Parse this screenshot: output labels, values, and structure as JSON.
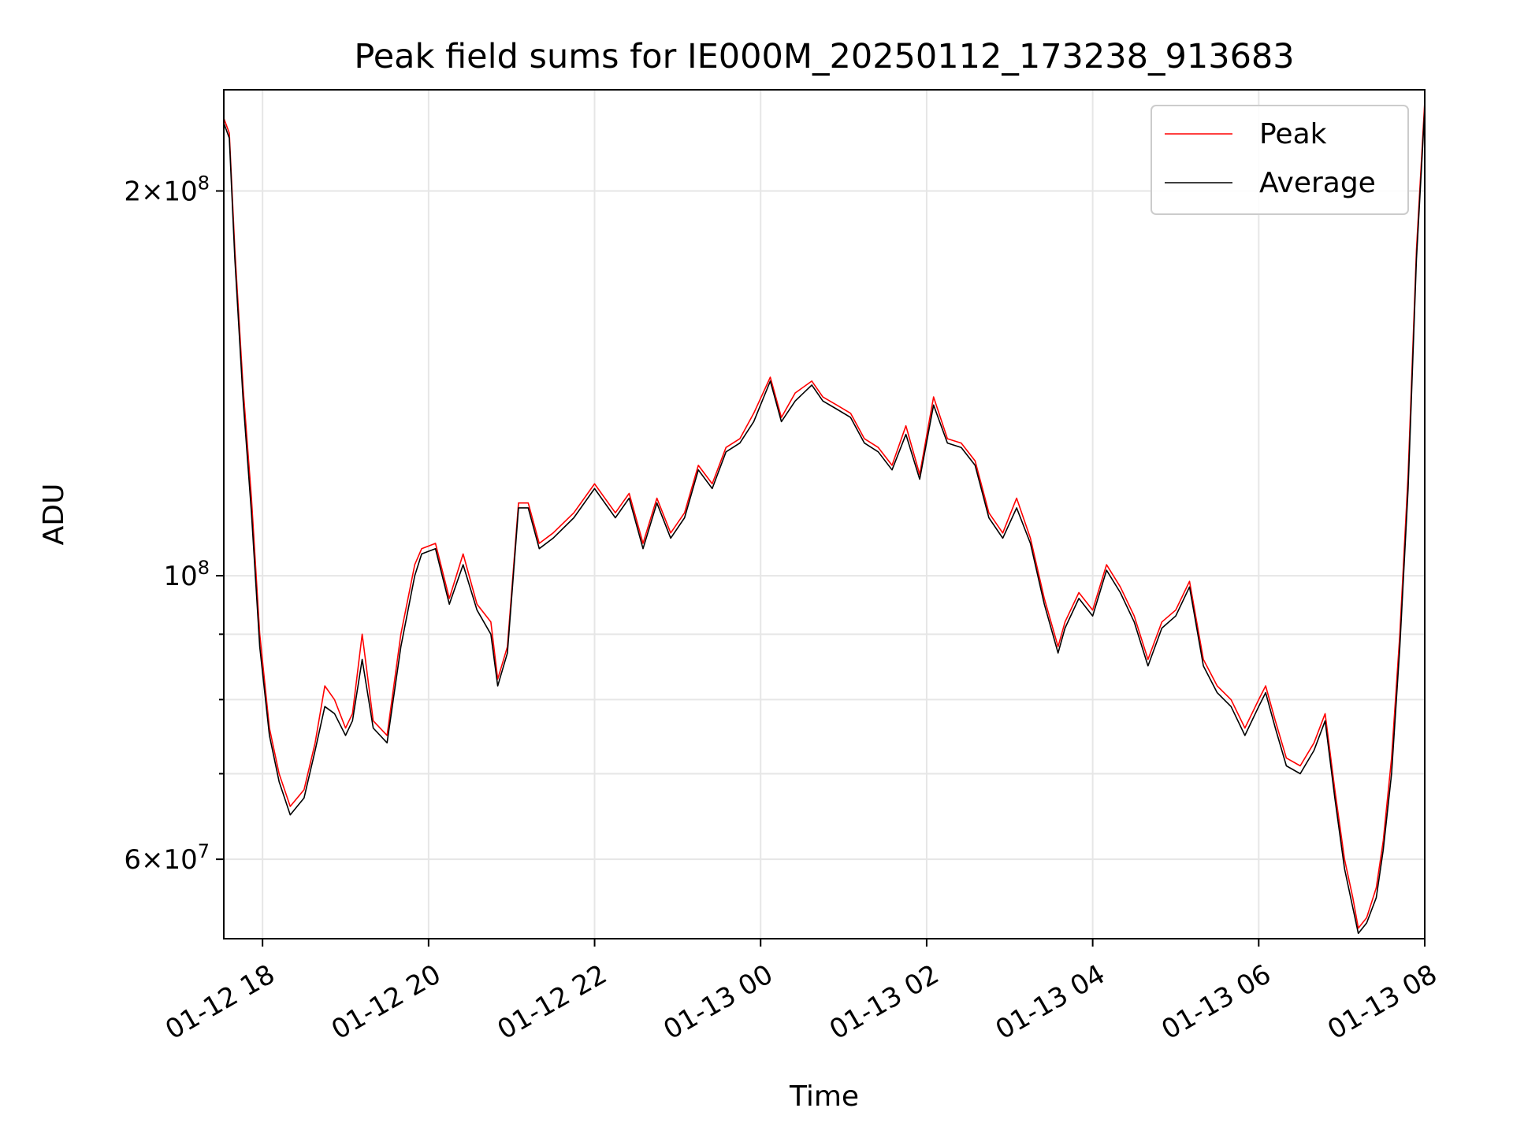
{
  "chart_data": {
    "type": "line",
    "title": "Peak field sums for IE000M_20250112_173238_913683",
    "xlabel": "Time",
    "ylabel": "ADU",
    "yscale": "log",
    "xlim": [
      "2025-01-12 17:32",
      "2025-01-13 08:00"
    ],
    "ylim": [
      52000000,
      240000000
    ],
    "x_ticks": [
      "01-12 18",
      "01-12 20",
      "01-12 22",
      "01-13 00",
      "01-13 02",
      "01-13 04",
      "01-13 06",
      "01-13 08"
    ],
    "y_major_ticks": [
      {
        "value": 60000000,
        "base": "6",
        "exp": "7"
      },
      {
        "value": 100000000,
        "base": "",
        "exp": "8"
      },
      {
        "value": 200000000,
        "base": "2",
        "exp": "8"
      }
    ],
    "y_minor_ticks": [
      70000000,
      80000000,
      90000000
    ],
    "grid": true,
    "legend_position": "top-right",
    "series": [
      {
        "name": "Peak",
        "color": "#ff0000",
        "x": [
          "2025-01-12 17:32",
          "2025-01-12 17:36",
          "2025-01-12 17:40",
          "2025-01-12 17:46",
          "2025-01-12 17:52",
          "2025-01-12 17:58",
          "2025-01-12 18:05",
          "2025-01-12 18:12",
          "2025-01-12 18:20",
          "2025-01-12 18:30",
          "2025-01-12 18:38",
          "2025-01-12 18:45",
          "2025-01-12 18:52",
          "2025-01-12 19:00",
          "2025-01-12 19:05",
          "2025-01-12 19:12",
          "2025-01-12 19:20",
          "2025-01-12 19:30",
          "2025-01-12 19:40",
          "2025-01-12 19:50",
          "2025-01-12 19:55",
          "2025-01-12 20:05",
          "2025-01-12 20:15",
          "2025-01-12 20:25",
          "2025-01-12 20:35",
          "2025-01-12 20:45",
          "2025-01-12 20:50",
          "2025-01-12 20:57",
          "2025-01-12 21:05",
          "2025-01-12 21:12",
          "2025-01-12 21:20",
          "2025-01-12 21:30",
          "2025-01-12 21:45",
          "2025-01-12 22:00",
          "2025-01-12 22:15",
          "2025-01-12 22:25",
          "2025-01-12 22:35",
          "2025-01-12 22:45",
          "2025-01-12 22:55",
          "2025-01-12 23:05",
          "2025-01-12 23:15",
          "2025-01-12 23:25",
          "2025-01-12 23:35",
          "2025-01-12 23:45",
          "2025-01-12 23:55",
          "2025-01-13 00:07",
          "2025-01-13 00:15",
          "2025-01-13 00:25",
          "2025-01-13 00:37",
          "2025-01-13 00:45",
          "2025-01-13 00:55",
          "2025-01-13 01:05",
          "2025-01-13 01:15",
          "2025-01-13 01:25",
          "2025-01-13 01:35",
          "2025-01-13 01:45",
          "2025-01-13 01:55",
          "2025-01-13 02:05",
          "2025-01-13 02:15",
          "2025-01-13 02:25",
          "2025-01-13 02:35",
          "2025-01-13 02:45",
          "2025-01-13 02:55",
          "2025-01-13 03:05",
          "2025-01-13 03:15",
          "2025-01-13 03:25",
          "2025-01-13 03:35",
          "2025-01-13 03:40",
          "2025-01-13 03:50",
          "2025-01-13 04:00",
          "2025-01-13 04:10",
          "2025-01-13 04:20",
          "2025-01-13 04:30",
          "2025-01-13 04:40",
          "2025-01-13 04:50",
          "2025-01-13 05:00",
          "2025-01-13 05:10",
          "2025-01-13 05:20",
          "2025-01-13 05:30",
          "2025-01-13 05:40",
          "2025-01-13 05:50",
          "2025-01-13 06:00",
          "2025-01-13 06:05",
          "2025-01-13 06:12",
          "2025-01-13 06:20",
          "2025-01-13 06:30",
          "2025-01-13 06:40",
          "2025-01-13 06:48",
          "2025-01-13 06:55",
          "2025-01-13 07:02",
          "2025-01-13 07:08",
          "2025-01-13 07:12",
          "2025-01-13 07:18",
          "2025-01-13 07:25",
          "2025-01-13 07:30",
          "2025-01-13 07:36",
          "2025-01-13 07:42",
          "2025-01-13 07:48",
          "2025-01-13 07:54",
          "2025-01-13 08:00"
        ],
        "y": [
          228000000,
          222000000,
          180000000,
          140000000,
          115000000,
          90000000,
          76000000,
          70000000,
          66000000,
          68000000,
          74000000,
          82000000,
          80000000,
          76000000,
          78000000,
          90000000,
          77000000,
          75000000,
          90000000,
          102000000,
          105000000,
          106000000,
          96000000,
          104000000,
          95000000,
          92000000,
          83000000,
          88000000,
          114000000,
          114000000,
          106000000,
          108000000,
          112000000,
          118000000,
          112000000,
          116000000,
          106000000,
          115000000,
          108000000,
          112000000,
          122000000,
          118000000,
          126000000,
          128000000,
          134000000,
          143000000,
          133000000,
          139000000,
          142000000,
          138000000,
          136000000,
          134000000,
          128000000,
          126000000,
          122000000,
          131000000,
          120000000,
          138000000,
          128000000,
          127000000,
          123000000,
          112000000,
          108000000,
          115000000,
          107000000,
          96000000,
          88000000,
          92000000,
          97000000,
          94000000,
          102000000,
          98000000,
          93000000,
          86000000,
          92000000,
          94000000,
          99000000,
          86000000,
          82000000,
          80000000,
          76000000,
          80000000,
          82000000,
          77000000,
          72000000,
          71000000,
          74000000,
          78000000,
          68000000,
          60000000,
          56000000,
          53000000,
          54000000,
          57000000,
          62000000,
          72000000,
          90000000,
          120000000,
          180000000,
          235000000
        ]
      },
      {
        "name": "Average",
        "color": "#000000",
        "x": [
          "2025-01-12 17:32",
          "2025-01-12 17:36",
          "2025-01-12 17:40",
          "2025-01-12 17:46",
          "2025-01-12 17:52",
          "2025-01-12 17:58",
          "2025-01-12 18:05",
          "2025-01-12 18:12",
          "2025-01-12 18:20",
          "2025-01-12 18:30",
          "2025-01-12 18:38",
          "2025-01-12 18:45",
          "2025-01-12 18:52",
          "2025-01-12 19:00",
          "2025-01-12 19:05",
          "2025-01-12 19:12",
          "2025-01-12 19:20",
          "2025-01-12 19:30",
          "2025-01-12 19:40",
          "2025-01-12 19:50",
          "2025-01-12 19:55",
          "2025-01-12 20:05",
          "2025-01-12 20:15",
          "2025-01-12 20:25",
          "2025-01-12 20:35",
          "2025-01-12 20:45",
          "2025-01-12 20:50",
          "2025-01-12 20:57",
          "2025-01-12 21:05",
          "2025-01-12 21:12",
          "2025-01-12 21:20",
          "2025-01-12 21:30",
          "2025-01-12 21:45",
          "2025-01-12 22:00",
          "2025-01-12 22:15",
          "2025-01-12 22:25",
          "2025-01-12 22:35",
          "2025-01-12 22:45",
          "2025-01-12 22:55",
          "2025-01-12 23:05",
          "2025-01-12 23:15",
          "2025-01-12 23:25",
          "2025-01-12 23:35",
          "2025-01-12 23:45",
          "2025-01-12 23:55",
          "2025-01-13 00:07",
          "2025-01-13 00:15",
          "2025-01-13 00:25",
          "2025-01-13 00:37",
          "2025-01-13 00:45",
          "2025-01-13 00:55",
          "2025-01-13 01:05",
          "2025-01-13 01:15",
          "2025-01-13 01:25",
          "2025-01-13 01:35",
          "2025-01-13 01:45",
          "2025-01-13 01:55",
          "2025-01-13 02:05",
          "2025-01-13 02:15",
          "2025-01-13 02:25",
          "2025-01-13 02:35",
          "2025-01-13 02:45",
          "2025-01-13 02:55",
          "2025-01-13 03:05",
          "2025-01-13 03:15",
          "2025-01-13 03:25",
          "2025-01-13 03:35",
          "2025-01-13 03:40",
          "2025-01-13 03:50",
          "2025-01-13 04:00",
          "2025-01-13 04:10",
          "2025-01-13 04:20",
          "2025-01-13 04:30",
          "2025-01-13 04:40",
          "2025-01-13 04:50",
          "2025-01-13 05:00",
          "2025-01-13 05:10",
          "2025-01-13 05:20",
          "2025-01-13 05:30",
          "2025-01-13 05:40",
          "2025-01-13 05:50",
          "2025-01-13 06:00",
          "2025-01-13 06:05",
          "2025-01-13 06:12",
          "2025-01-13 06:20",
          "2025-01-13 06:30",
          "2025-01-13 06:40",
          "2025-01-13 06:48",
          "2025-01-13 06:55",
          "2025-01-13 07:02",
          "2025-01-13 07:08",
          "2025-01-13 07:12",
          "2025-01-13 07:18",
          "2025-01-13 07:25",
          "2025-01-13 07:30",
          "2025-01-13 07:36",
          "2025-01-13 07:42",
          "2025-01-13 07:48",
          "2025-01-13 07:54",
          "2025-01-13 08:00"
        ],
        "y": [
          226000000,
          220000000,
          177000000,
          137000000,
          112000000,
          88000000,
          75000000,
          69000000,
          65000000,
          67000000,
          73000000,
          79000000,
          78000000,
          75000000,
          77000000,
          86000000,
          76000000,
          74000000,
          88000000,
          100000000,
          104000000,
          105000000,
          95000000,
          102000000,
          94000000,
          90000000,
          82000000,
          87000000,
          113000000,
          113000000,
          105000000,
          107000000,
          111000000,
          117000000,
          111000000,
          115000000,
          105000000,
          114000000,
          107000000,
          111000000,
          121000000,
          117000000,
          125000000,
          127000000,
          132000000,
          142000000,
          132000000,
          137000000,
          141000000,
          137000000,
          135000000,
          133000000,
          127000000,
          125000000,
          121000000,
          129000000,
          119000000,
          136000000,
          127000000,
          126000000,
          122000000,
          111000000,
          107000000,
          113000000,
          106000000,
          95000000,
          87000000,
          91000000,
          96000000,
          93000000,
          101000000,
          97000000,
          92000000,
          85000000,
          91000000,
          93000000,
          98000000,
          85000000,
          81000000,
          79000000,
          75000000,
          79000000,
          81000000,
          76000000,
          71000000,
          70000000,
          73000000,
          77000000,
          67000000,
          59000000,
          55000000,
          52500000,
          53500000,
          56000000,
          61000000,
          70000000,
          88000000,
          117000000,
          177000000,
          232000000
        ]
      }
    ]
  }
}
